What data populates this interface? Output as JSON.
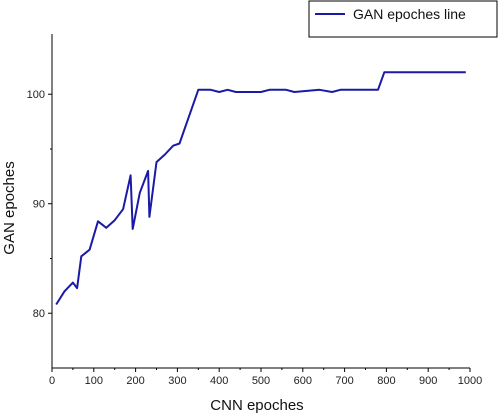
{
  "chart_data": {
    "type": "line",
    "xlabel": "CNN epoches",
    "ylabel": "GAN epoches",
    "xlim": [
      0,
      1000
    ],
    "ylim": [
      75,
      105.5
    ],
    "x_ticks": [
      0,
      100,
      200,
      300,
      400,
      500,
      600,
      700,
      800,
      900,
      1000
    ],
    "y_ticks": [
      80,
      90,
      100
    ],
    "grid": false,
    "legend_position": "top-right",
    "series": [
      {
        "name": "GAN epoches line",
        "color": "#1a1aa6",
        "x": [
          10,
          30,
          50,
          60,
          70,
          90,
          110,
          130,
          150,
          170,
          188,
          193,
          210,
          230,
          233,
          250,
          270,
          290,
          305,
          350,
          365,
          380,
          400,
          420,
          440,
          460,
          500,
          520,
          560,
          580,
          640,
          670,
          690,
          730,
          780,
          795,
          990
        ],
        "y": [
          80.8,
          82.0,
          82.8,
          82.3,
          85.2,
          85.8,
          88.4,
          87.8,
          88.5,
          89.5,
          92.6,
          87.7,
          91.0,
          93.0,
          88.8,
          93.8,
          94.5,
          95.3,
          95.5,
          100.4,
          100.4,
          100.4,
          100.2,
          100.4,
          100.2,
          100.2,
          100.2,
          100.4,
          100.4,
          100.2,
          100.4,
          100.2,
          100.4,
          100.4,
          100.4,
          102.0,
          102.0
        ]
      }
    ]
  }
}
